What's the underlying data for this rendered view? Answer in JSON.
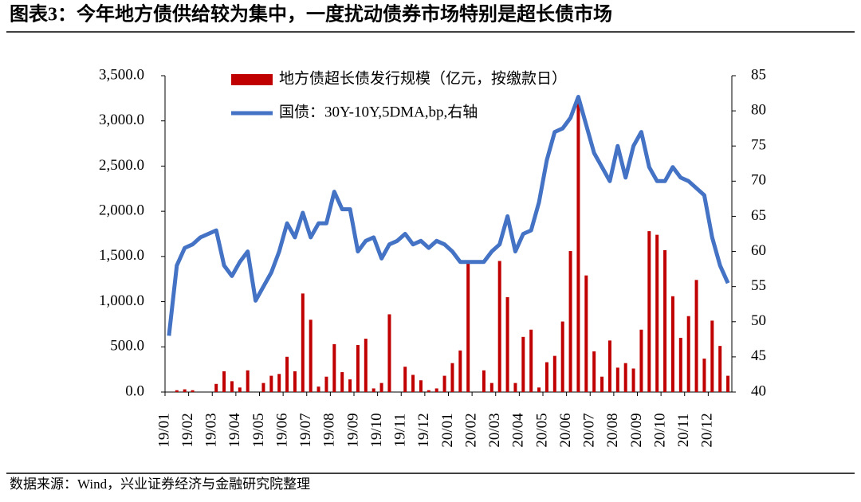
{
  "title": "图表3：今年地方债供给较为集中，一度扰动债券市场特别是超长债市场",
  "source": "数据来源：Wind，兴业证券经济与金融研究院整理",
  "chart_data": {
    "type": "bar-line",
    "categories": [
      "19/01",
      null,
      null,
      "19/02",
      null,
      null,
      "19/03",
      null,
      null,
      "19/04",
      null,
      null,
      "19/05",
      null,
      null,
      "19/06",
      null,
      null,
      "19/07",
      null,
      null,
      "19/08",
      null,
      null,
      "19/09",
      null,
      null,
      "19/10",
      null,
      null,
      "19/11",
      null,
      null,
      "19/12",
      null,
      null,
      "20/01",
      null,
      null,
      "20/02",
      null,
      null,
      "20/03",
      null,
      null,
      "20/04",
      null,
      null,
      "20/05",
      null,
      null,
      "20/06",
      null,
      null,
      "20/07",
      null,
      null,
      "20/08",
      null,
      null,
      "20/09",
      null,
      null,
      "20/10",
      null,
      null,
      "20/11",
      null,
      null,
      "20/12",
      null,
      null
    ],
    "series": [
      {
        "name": "地方债超长债发行规模（亿元，按缴款日）",
        "color": "#c00000",
        "kind": "bar",
        "values": [
          0,
          20,
          30,
          20,
          0,
          0,
          90,
          230,
          120,
          50,
          240,
          0,
          100,
          180,
          200,
          390,
          230,
          1090,
          800,
          60,
          170,
          530,
          220,
          140,
          520,
          590,
          40,
          100,
          860,
          0,
          280,
          190,
          130,
          20,
          40,
          180,
          320,
          460,
          1450,
          0,
          240,
          100,
          1450,
          1050,
          100,
          610,
          690,
          50,
          330,
          400,
          780,
          1560,
          3200,
          1290,
          450,
          170,
          570,
          270,
          320,
          260,
          690,
          1780,
          1740,
          1570,
          1060,
          600,
          840,
          1240,
          370,
          790,
          510,
          180
        ]
      },
      {
        "name": "国债：30Y-10Y,5DMA,bp,右轴",
        "color": "#4472c4",
        "kind": "line",
        "axis": "y2",
        "values": [
          48,
          58,
          60.5,
          61,
          62,
          62.5,
          63,
          58,
          56.5,
          58.5,
          60,
          53,
          55,
          57,
          60,
          64,
          62,
          65.5,
          62,
          64,
          64,
          68.5,
          66,
          66,
          60,
          61.5,
          62,
          59,
          61,
          61.5,
          62.5,
          61,
          61.5,
          60.5,
          61.5,
          61,
          60,
          58.5,
          58.5,
          58.5,
          58.5,
          60,
          61,
          65,
          60,
          62.5,
          63,
          67,
          73,
          77,
          77.5,
          79,
          82,
          78,
          74,
          72,
          70,
          75,
          70.5,
          75,
          77,
          72,
          70,
          70,
          72,
          70.5,
          70,
          69,
          68,
          62,
          58,
          55.5
        ]
      }
    ],
    "ylim": [
      0,
      3500
    ],
    "yticks": [
      {
        "value": 0,
        "label": "0.0"
      },
      {
        "value": 500,
        "label": "500.0"
      },
      {
        "value": 1000,
        "label": "1,000.0"
      },
      {
        "value": 1500,
        "label": "1,500.0"
      },
      {
        "value": 2000,
        "label": "2,000.0"
      },
      {
        "value": 2500,
        "label": "2,500.0"
      },
      {
        "value": 3000,
        "label": "3,000.0"
      },
      {
        "value": 3500,
        "label": "3,500.0"
      }
    ],
    "y2lim": [
      40,
      85
    ],
    "y2ticks": [
      40,
      45,
      50,
      55,
      60,
      65,
      70,
      75,
      80,
      85
    ]
  }
}
